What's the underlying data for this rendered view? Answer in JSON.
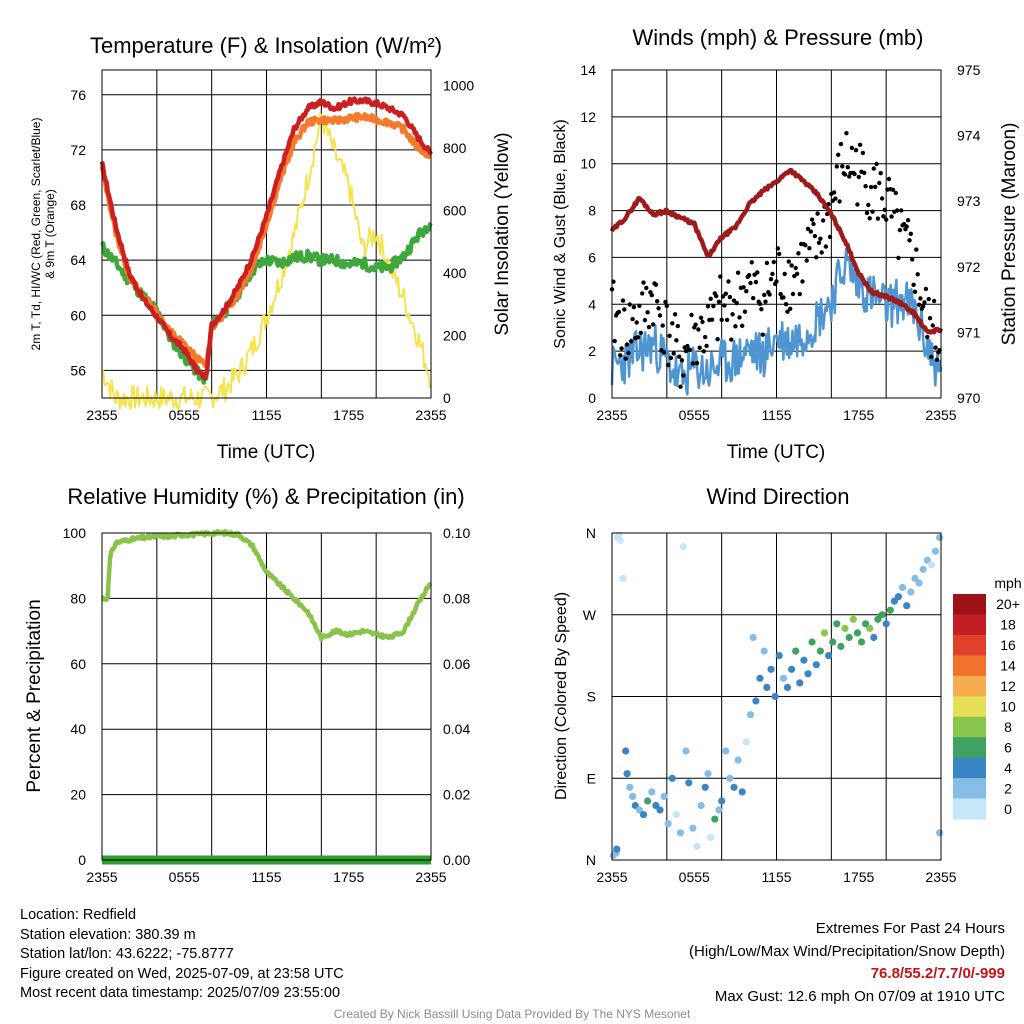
{
  "colors": {
    "temp": "#cc1f1f",
    "dewpoint": "#3ea83e",
    "heat_index": "#cc1f1f",
    "t9m": "#f57a2b",
    "solar": "#f5e34f",
    "wind": "#4f95d1",
    "gust": "#000000",
    "pressure": "#9e1b1b",
    "rh": "#8ac34a",
    "precip": "#2e9e2e",
    "grid": "#000000"
  },
  "chart_data": [
    {
      "type": "line",
      "title": "Temperature (F) & Insolation (W/m²)",
      "xlabel": "Time (UTC)",
      "ylabel": "2m T, Td, HI/WC (Red, Green, Scarlet/Blue) & 9m T (Orange)",
      "ylabel_line1": "2m T, Td, HI/WC (Red, Green, Scarlet/Blue)",
      "ylabel_line2": "& 9m T (Orange)",
      "y2label": "Solar Insolation (Yellow)",
      "xticks": [
        "2355",
        "0555",
        "1155",
        "1755",
        "2355"
      ],
      "yticks": [
        "56",
        "60",
        "64",
        "68",
        "72",
        "76"
      ],
      "y2ticks": [
        "0",
        "200",
        "400",
        "600",
        "800",
        "1000"
      ],
      "ylim": [
        54,
        77.8
      ],
      "y2lim": [
        0,
        1050
      ],
      "x_hours": [
        0,
        1,
        2,
        3,
        4,
        5,
        6,
        7,
        7.6,
        8,
        9,
        10,
        11,
        12,
        13,
        14,
        15,
        16,
        17,
        18,
        19,
        20,
        21,
        22,
        23,
        24
      ],
      "series": [
        {
          "name": "2m T",
          "values": [
            71,
            66.5,
            63,
            61.2,
            59.9,
            58.5,
            57.5,
            55.9,
            55.5,
            59.3,
            60.5,
            62.2,
            64.3,
            67.2,
            70.5,
            73.5,
            75.0,
            75.5,
            75.0,
            75.5,
            75.6,
            75.4,
            75.0,
            74.5,
            73.0,
            71.7
          ]
        },
        {
          "name": "9m T",
          "values": [
            70.7,
            66.0,
            62.8,
            61.4,
            60.2,
            58.8,
            57.9,
            56.8,
            56.4,
            59.1,
            60.2,
            61.7,
            63.6,
            66.6,
            69.8,
            72.5,
            74.0,
            74.2,
            74.1,
            74.3,
            74.4,
            74.2,
            74.0,
            73.5,
            72.2,
            71.5
          ]
        },
        {
          "name": "Td",
          "values": [
            65,
            63.8,
            62.5,
            61.4,
            60.3,
            58.3,
            57.0,
            55.8,
            55.3,
            59.3,
            60.3,
            61.7,
            63.3,
            64.0,
            63.8,
            64.2,
            64.3,
            64.0,
            64.0,
            63.7,
            63.8,
            63.4,
            63.5,
            64.3,
            65.7,
            66.8
          ]
        },
        {
          "name": "Solar",
          "values": [
            90,
            0,
            0,
            0,
            0,
            0,
            0,
            0,
            0,
            5,
            30,
            80,
            160,
            260,
            380,
            520,
            700,
            900,
            780,
            680,
            480,
            530,
            420,
            320,
            200,
            60
          ]
        }
      ]
    },
    {
      "type": "line",
      "title": "Winds (mph) & Pressure (mb)",
      "xlabel": "Time (UTC)",
      "ylabel": "Sonic Wind & Gust (Blue, Black)",
      "y2label": "Station Pressure (Maroon)",
      "xticks": [
        "2355",
        "0555",
        "1155",
        "1755",
        "2355"
      ],
      "yticks": [
        "0",
        "2",
        "4",
        "6",
        "8",
        "10",
        "12",
        "14"
      ],
      "y2ticks": [
        "970",
        "971",
        "972",
        "973",
        "974",
        "975"
      ],
      "ylim": [
        0,
        14
      ],
      "y2lim": [
        970,
        975
      ],
      "x_hours": [
        0,
        1,
        2,
        3,
        4,
        5,
        6,
        7,
        8,
        9,
        10,
        11,
        12,
        13,
        14,
        15,
        16,
        17,
        18,
        19,
        20,
        21,
        22,
        23,
        24
      ],
      "series": [
        {
          "name": "Sonic Wind",
          "values": [
            1.3,
            1.6,
            2.0,
            2.3,
            1.6,
            0.7,
            1.3,
            1.1,
            1.5,
            1.6,
            2.1,
            1.8,
            2.6,
            2.4,
            2.8,
            3.4,
            4.2,
            5.8,
            4.8,
            4.4,
            3.9,
            4.2,
            3.8,
            2.2,
            0.9
          ]
        },
        {
          "name": "Gust",
          "values": [
            3.6,
            2.8,
            3.4,
            4.4,
            2.8,
            1.6,
            2.6,
            2.9,
            3.8,
            4.0,
            4.7,
            4.2,
            5.3,
            5.1,
            5.8,
            6.6,
            8.2,
            10.2,
            9.6,
            9.0,
            8.4,
            6.8,
            5.8,
            3.2,
            2.2
          ]
        },
        {
          "name": "Station Pressure",
          "values": [
            972.55,
            972.75,
            973.05,
            972.8,
            972.85,
            972.75,
            972.65,
            972.15,
            972.45,
            972.6,
            972.95,
            973.15,
            973.3,
            973.48,
            973.3,
            973.1,
            972.8,
            972.4,
            971.9,
            971.6,
            971.55,
            971.45,
            971.3,
            971.0,
            971.05
          ]
        }
      ]
    },
    {
      "type": "line",
      "title": "Relative Humidity (%) & Precipitation (in)",
      "ylabel": "Percent & Precipitation",
      "xticks": [
        "2355",
        "0555",
        "1155",
        "1755",
        "2355"
      ],
      "yticks": [
        "0",
        "20",
        "40",
        "60",
        "80",
        "100"
      ],
      "y2ticks": [
        "0.00",
        "0.02",
        "0.04",
        "0.06",
        "0.08",
        "0.10"
      ],
      "ylim": [
        0,
        100
      ],
      "y2lim": [
        0,
        0.1
      ],
      "x_hours": [
        0,
        0.4,
        0.6,
        1,
        2,
        3,
        4,
        5,
        6,
        7,
        8,
        9,
        10,
        11,
        12,
        13,
        14,
        15,
        16,
        17,
        18,
        19,
        20,
        21,
        22,
        23,
        24
      ],
      "series": [
        {
          "name": "RH",
          "values": [
            80,
            80,
            93,
            97,
            98,
            98.5,
            99,
            99,
            99.5,
            99.5,
            100,
            100,
            99.5,
            96,
            88,
            84,
            80,
            76,
            68,
            70,
            69,
            70,
            69,
            68,
            70,
            78,
            85
          ]
        },
        {
          "name": "Precipitation",
          "values": [
            0,
            0,
            0,
            0,
            0,
            0,
            0,
            0,
            0,
            0,
            0,
            0,
            0,
            0,
            0,
            0,
            0,
            0,
            0,
            0,
            0,
            0,
            0,
            0,
            0,
            0,
            0
          ]
        }
      ]
    },
    {
      "type": "scatter",
      "title": "Wind Direction",
      "ylabel": "Direction (Colored By Speed)",
      "xticks": [
        "2355",
        "0555",
        "1155",
        "1755",
        "2355"
      ],
      "yticks": [
        "N",
        "E",
        "S",
        "W",
        "N"
      ],
      "ylim": [
        0,
        360
      ],
      "legend_title": "mph",
      "legend_labels": [
        "0",
        "2",
        "4",
        "6",
        "8",
        "10",
        "12",
        "14",
        "16",
        "18",
        "20+"
      ],
      "legend_colors": [
        "#c6e6f7",
        "#86bde6",
        "#3b85c4",
        "#3fa162",
        "#88c64e",
        "#e6df55",
        "#f5ad4e",
        "#f0722c",
        "#e0412b",
        "#c21f25",
        "#9b1317"
      ],
      "points": [
        [
          0.1,
          5,
          1
        ],
        [
          0.3,
          8,
          1
        ],
        [
          0.35,
          12,
          2
        ],
        [
          0.4,
          355,
          0
        ],
        [
          0.5,
          358,
          0
        ],
        [
          0.6,
          352,
          0
        ],
        [
          0.8,
          310,
          0
        ],
        [
          1.0,
          120,
          2
        ],
        [
          1.1,
          95,
          2
        ],
        [
          1.3,
          80,
          1
        ],
        [
          1.5,
          70,
          1
        ],
        [
          1.7,
          60,
          2
        ],
        [
          2.0,
          55,
          1
        ],
        [
          2.3,
          50,
          2
        ],
        [
          2.6,
          65,
          3
        ],
        [
          2.9,
          75,
          1
        ],
        [
          3.2,
          60,
          2
        ],
        [
          3.5,
          55,
          2
        ],
        [
          3.8,
          70,
          1
        ],
        [
          4.1,
          40,
          1
        ],
        [
          4.4,
          90,
          2
        ],
        [
          4.7,
          50,
          0
        ],
        [
          5.0,
          30,
          1
        ],
        [
          5.2,
          345,
          0
        ],
        [
          5.4,
          120,
          1
        ],
        [
          5.6,
          85,
          2
        ],
        [
          5.9,
          35,
          1
        ],
        [
          6.2,
          15,
          0
        ],
        [
          6.5,
          60,
          1
        ],
        [
          6.8,
          80,
          2
        ],
        [
          7.0,
          95,
          1
        ],
        [
          7.2,
          25,
          0
        ],
        [
          7.5,
          45,
          3
        ],
        [
          7.8,
          55,
          1
        ],
        [
          8.0,
          65,
          2
        ],
        [
          8.3,
          120,
          1
        ],
        [
          8.6,
          90,
          1
        ],
        [
          8.9,
          80,
          2
        ],
        [
          9.2,
          110,
          1
        ],
        [
          9.5,
          75,
          2
        ],
        [
          9.8,
          130,
          0
        ],
        [
          10.1,
          160,
          1
        ],
        [
          10.3,
          245,
          1
        ],
        [
          10.5,
          175,
          2
        ],
        [
          10.8,
          200,
          2
        ],
        [
          11.1,
          230,
          1
        ],
        [
          11.3,
          190,
          2
        ],
        [
          11.6,
          210,
          2
        ],
        [
          11.9,
          180,
          2
        ],
        [
          12.2,
          225,
          2
        ],
        [
          12.5,
          200,
          1
        ],
        [
          12.8,
          190,
          2
        ],
        [
          13.1,
          210,
          2
        ],
        [
          13.4,
          230,
          3
        ],
        [
          13.7,
          195,
          2
        ],
        [
          14.0,
          220,
          2
        ],
        [
          14.3,
          205,
          2
        ],
        [
          14.6,
          240,
          3
        ],
        [
          14.9,
          215,
          2
        ],
        [
          15.2,
          230,
          3
        ],
        [
          15.5,
          250,
          4
        ],
        [
          15.8,
          225,
          2
        ],
        [
          16.1,
          240,
          3
        ],
        [
          16.4,
          260,
          3
        ],
        [
          16.7,
          235,
          3
        ],
        [
          17.0,
          255,
          4
        ],
        [
          17.3,
          245,
          3
        ],
        [
          17.6,
          265,
          4
        ],
        [
          17.9,
          250,
          3
        ],
        [
          18.2,
          240,
          3
        ],
        [
          18.5,
          260,
          3
        ],
        [
          18.8,
          255,
          4
        ],
        [
          19.1,
          245,
          2
        ],
        [
          19.4,
          265,
          3
        ],
        [
          19.7,
          270,
          3
        ],
        [
          20.0,
          260,
          2
        ],
        [
          20.3,
          275,
          3
        ],
        [
          20.6,
          285,
          2
        ],
        [
          20.9,
          290,
          2
        ],
        [
          21.2,
          300,
          1
        ],
        [
          21.5,
          280,
          2
        ],
        [
          21.8,
          295,
          1
        ],
        [
          22.1,
          310,
          1
        ],
        [
          22.4,
          305,
          1
        ],
        [
          22.7,
          320,
          1
        ],
        [
          23.0,
          330,
          1
        ],
        [
          23.3,
          325,
          0
        ],
        [
          23.6,
          340,
          1
        ],
        [
          23.9,
          355,
          1
        ],
        [
          23.9,
          30,
          1
        ]
      ]
    }
  ],
  "footer": {
    "location": "Location: Redfield",
    "elevation": "Station elevation: 380.39 m",
    "latlon": "Station lat/lon: 43.6222; -75.8777",
    "created": "Figure created on Wed, 2025-07-09, at 23:58 UTC",
    "recent": "Most recent data timestamp: 2025/07/09 23:55:00",
    "extremes_title": "Extremes For Past 24 Hours",
    "extremes_sub": "(High/Low/Max Wind/Precipitation/Snow Depth)",
    "extremes_values": "76.8/55.2/7.7/0/-999",
    "max_gust": "Max Gust: 12.6 mph On 07/09 at 1910 UTC",
    "credit": "Created By Nick Bassill Using Data Provided By The NYS Mesonet"
  }
}
